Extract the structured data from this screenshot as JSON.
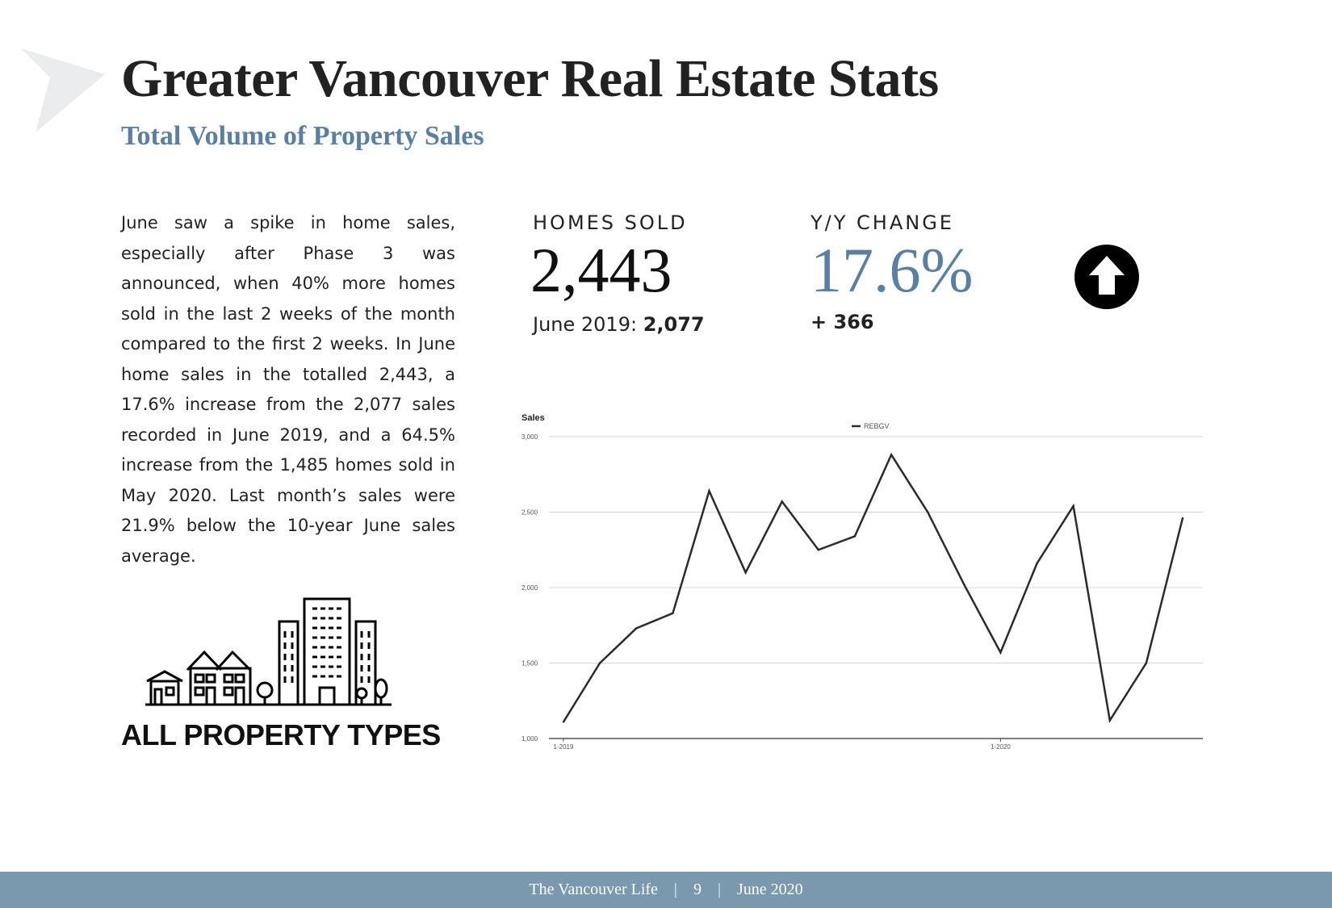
{
  "header": {
    "title": "Greater Vancouver Real Estate Stats",
    "subtitle": "Total Volume of Property Sales"
  },
  "body_text": "June saw a spike in home sales, especially after Phase 3 was announced, when 40% more homes sold in the last 2 weeks of the month compared to the first 2 weeks.  In June home sales in the totalled 2,443, a 17.6% increase from the 2,077 sales recorded in June 2019, and a 64.5% increase from the 1,485 homes sold in May 2020. Last month’s sales were 21.9% below the 10-year June sales average.",
  "stats": {
    "homes_sold": {
      "label": "HOMES SOLD",
      "value": "2,443",
      "sub_label": "June 2019:",
      "sub_value": "2,077"
    },
    "yy_change": {
      "label": "Y/Y CHANGE",
      "value": "17.6%",
      "sub": "+ 366"
    }
  },
  "property_types_label": "ALL PROPERTY TYPES",
  "icons": {
    "logo": "arrow-logo-icon",
    "trend": "arrow-up-circle-icon",
    "buildings": "buildings-icon"
  },
  "colors": {
    "accent_blue": "#5a7fa6",
    "footer_bg": "#7a98ae",
    "line": "#2b2b2b"
  },
  "footer": {
    "publication": "The Vancouver Life",
    "page": "9",
    "date": "June 2020"
  },
  "chart_data": {
    "type": "line",
    "ylabel": "Sales",
    "ylim": [
      1000,
      3000
    ],
    "yticks": [
      1000,
      1500,
      2000,
      2500,
      3000
    ],
    "ytick_labels": [
      "1,000",
      "1,500",
      "2,000",
      "2,500",
      "3,000"
    ],
    "xtick_labels": [
      {
        "index": 0,
        "label": "1-2019"
      },
      {
        "index": 12,
        "label": "1-2020"
      }
    ],
    "legend": "top-center",
    "grid": true,
    "series": [
      {
        "name": "REBGV",
        "values": [
          1110,
          1500,
          1730,
          1830,
          2640,
          2100,
          2570,
          2250,
          2340,
          2880,
          2500,
          2020,
          1570,
          2160,
          2540,
          1120,
          1500,
          2460
        ]
      }
    ]
  }
}
